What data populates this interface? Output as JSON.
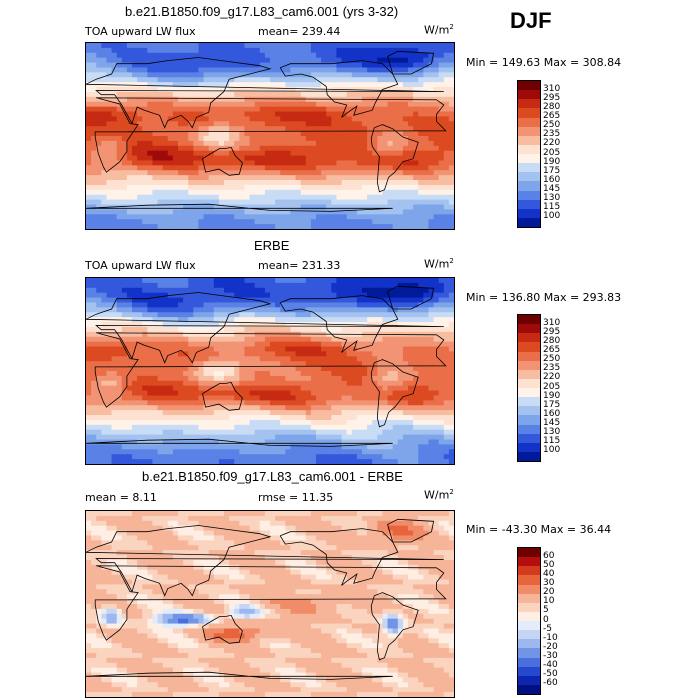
{
  "season": "DJF",
  "panels": [
    {
      "title": "b.e21.B1850.f09_g17.L83_cam6.001 (yrs 3-32)",
      "variable": "TOA upward LW flux",
      "mean_text": "mean= 239.44",
      "unit_base": "W/m",
      "unit_exp": "2",
      "minmax_text": "Min = 149.63 Max = 308.84",
      "colorbar_labels": [
        "310",
        "295",
        "280",
        "265",
        "250",
        "235",
        "220",
        "205",
        "190",
        "175",
        "160",
        "145",
        "130",
        "115",
        "100"
      ]
    },
    {
      "title": "ERBE",
      "variable": "TOA upward LW flux",
      "mean_text": "mean= 231.33",
      "unit_base": "W/m",
      "unit_exp": "2",
      "minmax_text": "Min = 136.80 Max = 293.83",
      "colorbar_labels": [
        "310",
        "295",
        "280",
        "265",
        "250",
        "235",
        "220",
        "205",
        "190",
        "175",
        "160",
        "145",
        "130",
        "115",
        "100"
      ]
    },
    {
      "title": "b.e21.B1850.f09_g17.L83_cam6.001 - ERBE",
      "mean_text": "mean =   8.11",
      "rmse_text": "rmse =  11.35",
      "unit_base": "W/m",
      "unit_exp": "2",
      "minmax_text": "Min = -43.30 Max =  36.44",
      "colorbar_labels": [
        "60",
        "50",
        "40",
        "30",
        "20",
        "10",
        "5",
        "0",
        "-5",
        "-10",
        "-20",
        "-30",
        "-40",
        "-50",
        "-60"
      ]
    }
  ],
  "colors": {
    "abs_scale": [
      "#6e0000",
      "#9e0a0a",
      "#c62a12",
      "#dc4a22",
      "#ea6e48",
      "#f29474",
      "#f8bca0",
      "#fde2d2",
      "#fff2e8",
      "#c8dcf6",
      "#a4c2f0",
      "#7ea4ea",
      "#5a82e6",
      "#3458dc",
      "#1232c8",
      "#001a9a"
    ],
    "diff_scale": [
      "#6e0000",
      "#b40e0e",
      "#d43a1e",
      "#e8643c",
      "#f08c68",
      "#f6b498",
      "#fbd4c0",
      "#feeee4",
      "#e2ecfa",
      "#c4d6f4",
      "#9cb8ee",
      "#7294e6",
      "#4a6edc",
      "#2648cc",
      "#0c26b0",
      "#001080"
    ]
  },
  "chart_data": [
    {
      "type": "heatmap",
      "title": "b.e21.B1850.f09_g17.L83_cam6.001 (yrs 3-32)",
      "subtitle": "TOA upward LW flux",
      "mean": 239.44,
      "min": 149.63,
      "max": 308.84,
      "units": "W/m2",
      "levels": [
        100,
        115,
        130,
        145,
        160,
        175,
        190,
        205,
        220,
        235,
        250,
        265,
        280,
        295,
        310
      ]
    },
    {
      "type": "heatmap",
      "title": "ERBE",
      "subtitle": "TOA upward LW flux",
      "mean": 231.33,
      "min": 136.8,
      "max": 293.83,
      "units": "W/m2",
      "levels": [
        100,
        115,
        130,
        145,
        160,
        175,
        190,
        205,
        220,
        235,
        250,
        265,
        280,
        295,
        310
      ]
    },
    {
      "type": "heatmap",
      "title": "b.e21.B1850.f09_g17.L83_cam6.001 - ERBE",
      "mean": 8.11,
      "rmse": 11.35,
      "min": -43.3,
      "max": 36.44,
      "units": "W/m2",
      "levels": [
        -60,
        -50,
        -40,
        -30,
        -20,
        -10,
        -5,
        0,
        5,
        10,
        20,
        30,
        40,
        50,
        60
      ]
    }
  ]
}
